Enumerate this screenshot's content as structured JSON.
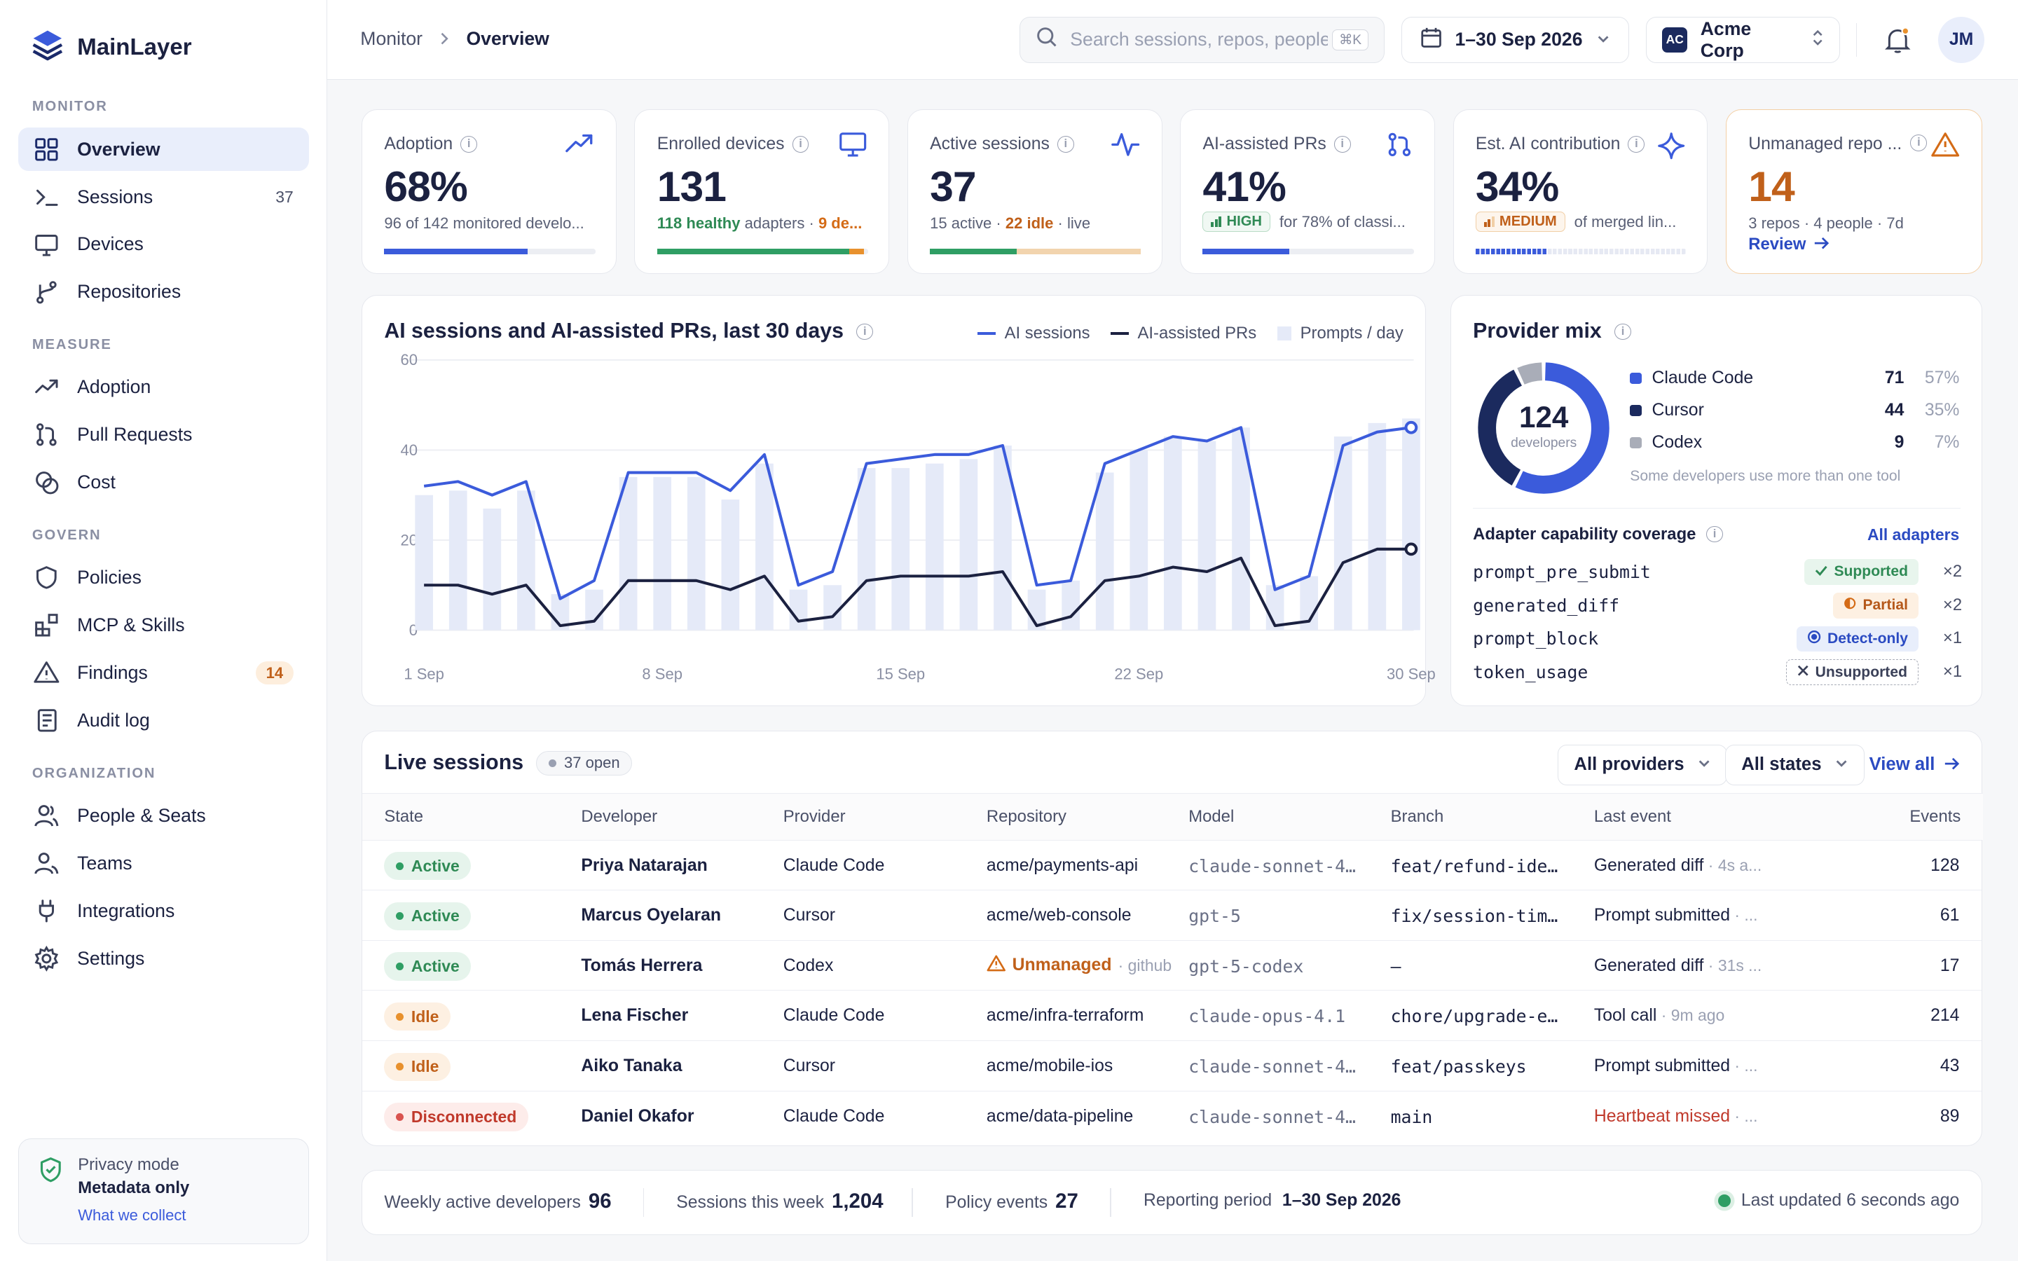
{
  "app": {
    "name": "MainLayer"
  },
  "sidebar": {
    "sections": [
      {
        "title": "MONITOR"
      },
      {
        "title": "MEASURE"
      },
      {
        "title": "GOVERN"
      },
      {
        "title": "ORGANIZATION"
      }
    ],
    "items": [
      {
        "label": "Overview",
        "icon": "grid-icon"
      },
      {
        "label": "Sessions",
        "icon": "terminal-icon",
        "count": "37"
      },
      {
        "label": "Devices",
        "icon": "monitor-icon"
      },
      {
        "label": "Repositories",
        "icon": "branch-icon"
      },
      {
        "label": "Adoption",
        "icon": "trend-icon"
      },
      {
        "label": "Pull Requests",
        "icon": "pull-request-icon"
      },
      {
        "label": "Cost",
        "icon": "coins-icon"
      },
      {
        "label": "Policies",
        "icon": "shield-icon"
      },
      {
        "label": "MCP & Skills",
        "icon": "blocks-icon"
      },
      {
        "label": "Findings",
        "icon": "warning-icon",
        "badge": "14"
      },
      {
        "label": "Audit log",
        "icon": "scroll-icon"
      },
      {
        "label": "People & Seats",
        "icon": "users-icon"
      },
      {
        "label": "Teams",
        "icon": "team-icon"
      },
      {
        "label": "Integrations",
        "icon": "plug-icon"
      },
      {
        "label": "Settings",
        "icon": "gear-icon"
      }
    ],
    "privacy": {
      "label": "Privacy mode",
      "value": "Metadata only",
      "link": "What we collect"
    }
  },
  "topbar": {
    "breadcrumb": [
      "Monitor",
      "Overview"
    ],
    "search_placeholder": "Search sessions, repos, people",
    "search_shortcut": "⌘K",
    "date_range": "1–30 Sep 2026",
    "org_initials": "AC",
    "org_name": "Acme Corp",
    "user_initials": "JM"
  },
  "kpis": [
    {
      "title": "Adoption",
      "value": "68%",
      "sub": "96 of 142 monitored develo...",
      "progress": 0.68,
      "icon": "trend-up-icon"
    },
    {
      "title": "Enrolled devices",
      "value": "131",
      "sub_healthy": "118 healthy",
      "sub_rest": " adapters · ",
      "sub_warn": "9 de...",
      "progress": 0.9,
      "icon": "monitor-icon"
    },
    {
      "title": "Active sessions",
      "value": "37",
      "sub_a": "15 active · ",
      "sub_idle": "22 idle",
      "sub_b": " · live",
      "progress": 0.41,
      "icon": "activity-icon"
    },
    {
      "title": "AI-assisted PRs",
      "value": "41%",
      "tag": "HIGH",
      "sub": "for 78% of classi...",
      "progress": 0.41,
      "icon": "pull-request-icon"
    },
    {
      "title": "Est. AI contribution",
      "value": "34%",
      "tag": "MEDIUM",
      "sub": "of merged lin...",
      "progress": 0.34,
      "icon": "sparkle-icon"
    },
    {
      "title": "Unmanaged repo ...",
      "value": "14",
      "sub": "3 repos · 4 people · 7d",
      "link": "Review",
      "icon": "warning-icon"
    }
  ],
  "chart_data": {
    "type": "line",
    "title": "AI sessions and AI-assisted PRs, last 30 days",
    "legend": [
      "AI sessions",
      "AI-assisted PRs",
      "Prompts / day"
    ],
    "x": [
      "1 Sep",
      "2 Sep",
      "3 Sep",
      "4 Sep",
      "5 Sep",
      "6 Sep",
      "7 Sep",
      "8 Sep",
      "9 Sep",
      "10 Sep",
      "11 Sep",
      "12 Sep",
      "13 Sep",
      "14 Sep",
      "15 Sep",
      "16 Sep",
      "17 Sep",
      "18 Sep",
      "19 Sep",
      "20 Sep",
      "21 Sep",
      "22 Sep",
      "23 Sep",
      "24 Sep",
      "25 Sep",
      "26 Sep",
      "27 Sep",
      "28 Sep",
      "29 Sep",
      "30 Sep"
    ],
    "xticks": [
      "1 Sep",
      "8 Sep",
      "15 Sep",
      "22 Sep",
      "30 Sep"
    ],
    "ylim": [
      0,
      60
    ],
    "yticks": [
      "0",
      "20",
      "40",
      "60"
    ],
    "series": [
      {
        "name": "AI sessions",
        "color": "#3b5bdb",
        "values": [
          32,
          33,
          30,
          33,
          7,
          11,
          35,
          35,
          35,
          31,
          39,
          10,
          13,
          37,
          38,
          39,
          39,
          41,
          10,
          11,
          37,
          40,
          43,
          42,
          45,
          9,
          12,
          41,
          44,
          45
        ]
      },
      {
        "name": "AI-assisted PRs",
        "color": "#1b2140",
        "values": [
          10,
          10,
          8,
          10,
          1,
          2,
          11,
          11,
          11,
          9,
          12,
          2,
          3,
          11,
          12,
          12,
          12,
          13,
          1,
          3,
          11,
          12,
          14,
          13,
          16,
          1,
          2,
          15,
          18,
          18
        ]
      },
      {
        "name": "Prompts / day",
        "color": "#e5eaf8",
        "values": [
          30,
          31,
          27,
          31,
          8,
          9,
          34,
          34,
          34,
          29,
          37,
          9,
          10,
          36,
          36,
          37,
          38,
          41,
          9,
          11,
          35,
          40,
          43,
          42,
          45,
          10,
          12,
          43,
          46,
          47
        ]
      }
    ]
  },
  "provider_mix": {
    "title": "Provider mix",
    "total": "124",
    "total_label": "developers",
    "providers": [
      {
        "name": "Claude Code",
        "count": "71",
        "pct": "57%",
        "color": "#3b5bdb",
        "value": 57
      },
      {
        "name": "Cursor",
        "count": "44",
        "pct": "35%",
        "color": "#1b2a5e",
        "value": 35
      },
      {
        "name": "Codex",
        "count": "9",
        "pct": "7%",
        "color": "#a9adb8",
        "value": 7
      }
    ],
    "note": "Some developers use more than one tool",
    "coverage_title": "Adapter capability coverage",
    "coverage_link": "All adapters",
    "capabilities": [
      {
        "name": "prompt_pre_submit",
        "status": "Supported",
        "mult": "×2"
      },
      {
        "name": "generated_diff",
        "status": "Partial",
        "mult": "×2"
      },
      {
        "name": "prompt_block",
        "status": "Detect-only",
        "mult": "×1"
      },
      {
        "name": "token_usage",
        "status": "Unsupported",
        "mult": "×1"
      }
    ]
  },
  "sessions": {
    "title": "Live sessions",
    "open_count": "37 open",
    "filters": [
      "All providers",
      "All states"
    ],
    "view_all": "View all",
    "columns": [
      "State",
      "Developer",
      "Provider",
      "Repository",
      "Model",
      "Branch",
      "Last event",
      "Events"
    ],
    "rows": [
      {
        "state": "Active",
        "developer": "Priya Natarajan",
        "provider": "Claude Code",
        "repo": "acme/payments-api",
        "model": "claude-sonnet-4…",
        "branch": "feat/refund-ide…",
        "event": "Generated diff",
        "event_time": " · 4s a...",
        "events": "128"
      },
      {
        "state": "Active",
        "developer": "Marcus Oyelaran",
        "provider": "Cursor",
        "repo": "acme/web-console",
        "model": "gpt-5",
        "branch": "fix/session-tim…",
        "event": "Prompt submitted",
        "event_time": " · ...",
        "events": "61"
      },
      {
        "state": "Active",
        "developer": "Tomás Herrera",
        "provider": "Codex",
        "repo": "Unmanaged",
        "repo_note": " · github",
        "model": "gpt-5-codex",
        "branch": "–",
        "event": "Generated diff",
        "event_time": " · 31s ...",
        "events": "17"
      },
      {
        "state": "Idle",
        "developer": "Lena Fischer",
        "provider": "Claude Code",
        "repo": "acme/infra-terraform",
        "model": "claude-opus-4.1",
        "branch": "chore/upgrade-e…",
        "event": "Tool call",
        "event_time": " · 9m ago",
        "events": "214"
      },
      {
        "state": "Idle",
        "developer": "Aiko Tanaka",
        "provider": "Cursor",
        "repo": "acme/mobile-ios",
        "model": "claude-sonnet-4…",
        "branch": "feat/passkeys",
        "event": "Prompt submitted",
        "event_time": " · ...",
        "events": "43"
      },
      {
        "state": "Disconnected",
        "developer": "Daniel Okafor",
        "provider": "Claude Code",
        "repo": "acme/data-pipeline",
        "model": "claude-sonnet-4…",
        "branch": "main",
        "event": "Heartbeat missed",
        "event_time": " · ...",
        "events": "89"
      }
    ]
  },
  "footer": {
    "wad_label": "Weekly active developers",
    "wad_value": "96",
    "sessions_label": "Sessions this week",
    "sessions_value": "1,204",
    "policy_label": "Policy events",
    "policy_value": "27",
    "period_label": "Reporting period",
    "period_value": "1–30 Sep 2026",
    "updated": "Last updated 6 seconds ago"
  }
}
